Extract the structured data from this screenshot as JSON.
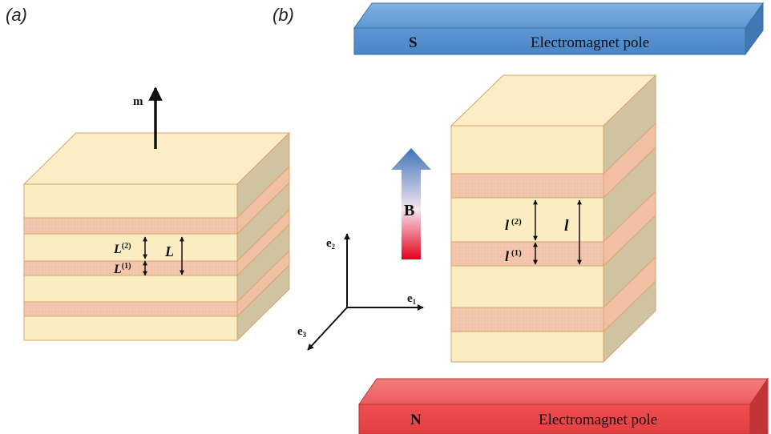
{
  "panels": {
    "a": {
      "label": "(a)"
    },
    "b": {
      "label": "(b)"
    }
  },
  "panel_a": {
    "m_label": "m",
    "L2_label": "L",
    "L2_sup": "(2)",
    "L1_label": "L",
    "L1_sup": "(1)",
    "L_label": "L"
  },
  "panel_b": {
    "top_pole": {
      "letter": "S",
      "text": "Electromagnet pole"
    },
    "bottom_pole": {
      "letter": "N",
      "text": "Electromagnet pole"
    },
    "B_label": "B",
    "l2_label": "l",
    "l2_sup": "(2)",
    "l1_label": "l",
    "l1_sup": "(1)",
    "l_label": "l",
    "axes": {
      "e1": "e",
      "e1_sub": "1",
      "e2": "e",
      "e2_sub": "2",
      "e3": "e",
      "e3_sub": "3"
    }
  },
  "colors": {
    "cream": "#FBEDC2",
    "cream_top": "#FCEDC6",
    "side_gray": "#CFC3A2",
    "pink_layer": "#F4C9B0",
    "edge": "#D9A46A",
    "pole_blue": "#5B9BD5",
    "pole_red": "#E8474A"
  }
}
